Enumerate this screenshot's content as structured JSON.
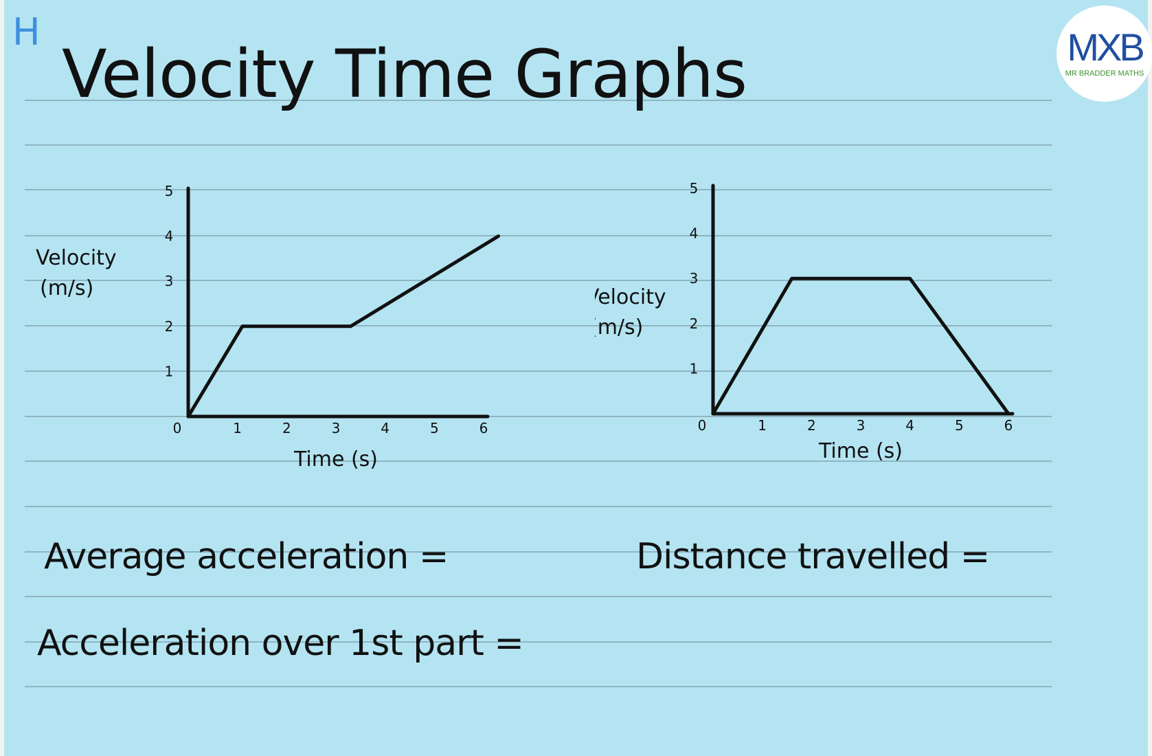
{
  "page": {
    "corner_mark": "H",
    "title": "Velocity Time Graphs",
    "logo": {
      "mark": "MXB",
      "caption": "MR BRADDER MATHS"
    },
    "questions": {
      "average_acceleration": "Average acceleration =",
      "distance_travelled": "Distance travelled =",
      "acceleration_first_part": "Acceleration over 1st part ="
    },
    "colors": {
      "paper": "#b4e4f2",
      "ruled_line": "#8fb4c2",
      "ink": "#111111",
      "corner_mark": "#3f8fe0"
    }
  },
  "chart_data": [
    {
      "type": "line",
      "xlabel": "Time (s)",
      "ylabel": "Velocity (m/s)",
      "ylabel_lines": [
        "Velocity",
        "(m/s)"
      ],
      "xlim": [
        0,
        6
      ],
      "ylim": [
        0,
        5
      ],
      "xticks": [
        "0",
        "1",
        "2",
        "3",
        "4",
        "5",
        "6"
      ],
      "yticks": [
        "1",
        "2",
        "3",
        "4",
        "5"
      ],
      "grid": false,
      "series": [
        {
          "x": [
            0,
            1.1,
            3.3,
            6.3
          ],
          "y": [
            0,
            2,
            2,
            4
          ]
        }
      ]
    },
    {
      "type": "line",
      "xlabel": "Time (s)",
      "ylabel": "Velocity (m/s)",
      "ylabel_lines": [
        "Velocity",
        "(m/s)"
      ],
      "xlim": [
        0,
        6
      ],
      "ylim": [
        0,
        5
      ],
      "xticks": [
        "0",
        "1",
        "2",
        "3",
        "4",
        "5",
        "6"
      ],
      "yticks": [
        "1",
        "2",
        "3",
        "4",
        "5"
      ],
      "grid": false,
      "series": [
        {
          "x": [
            0,
            1.6,
            4,
            6
          ],
          "y": [
            0,
            3,
            3,
            0
          ]
        }
      ]
    }
  ]
}
